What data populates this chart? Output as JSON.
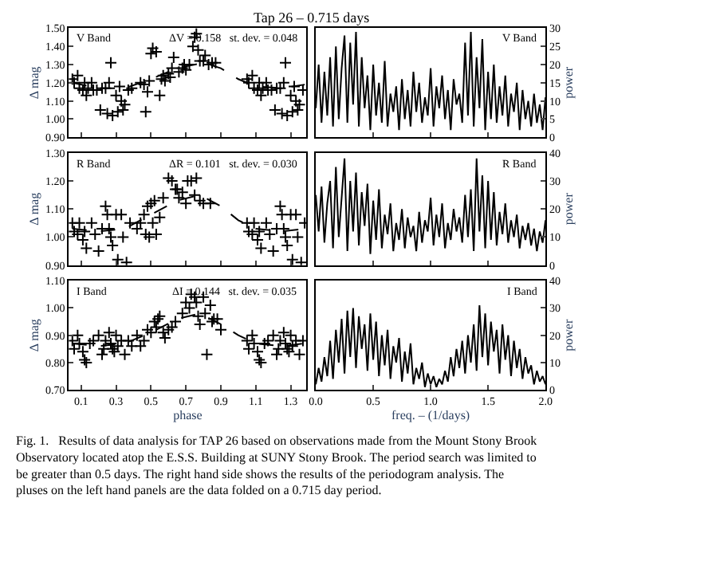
{
  "chart_data": [
    {
      "type": "scatter",
      "title": "Tap 26 – 0.715 days",
      "ylabel": "Δ mag",
      "annotations": [
        "V Band",
        "ΔV = 0.158   st. dev. = 0.048"
      ],
      "xlim": [
        0.03,
        1.39
      ],
      "xticks": [
        {
          "value": 0.1,
          "label": null
        },
        {
          "value": 0.3,
          "label": null
        },
        {
          "value": 0.5,
          "label": null
        },
        {
          "value": 0.7,
          "label": null
        },
        {
          "value": 0.9,
          "label": null
        },
        {
          "value": 1.1,
          "label": null
        },
        {
          "value": 1.3,
          "label": null
        }
      ],
      "ylim": [
        0.9,
        1.5
      ],
      "yticks": [
        {
          "value": 0.9,
          "label": "0.90"
        },
        {
          "value": 1.0,
          "label": "1.00"
        },
        {
          "value": 1.1,
          "label": "1.10"
        },
        {
          "value": 1.2,
          "label": "1.20"
        },
        {
          "value": 1.3,
          "label": "1.30"
        },
        {
          "value": 1.4,
          "label": "1.40"
        },
        {
          "value": 1.5,
          "label": "1.50"
        }
      ],
      "tick_labels": "y",
      "series": [
        {
          "type": "scatter",
          "marker": "cross",
          "color": "#000000",
          "x": [
            0.05,
            0.06,
            0.08,
            0.09,
            0.11,
            0.12,
            0.13,
            0.14,
            0.16,
            0.17,
            0.19,
            0.21,
            0.22,
            0.24,
            0.25,
            0.26,
            0.27,
            0.28,
            0.3,
            0.31,
            0.32,
            0.33,
            0.34,
            0.35,
            0.37,
            0.39,
            0.44,
            0.46,
            0.47,
            0.48,
            0.49,
            0.5,
            0.51,
            0.53,
            0.55,
            0.56,
            0.57,
            0.58,
            0.6,
            0.61,
            0.62,
            0.63,
            0.66,
            0.68,
            0.69,
            0.7,
            0.72,
            0.74,
            0.75,
            0.76,
            0.77,
            0.78,
            0.8,
            0.81,
            0.83,
            0.85,
            0.87,
            1.05,
            1.06,
            1.08,
            1.09,
            1.11,
            1.12,
            1.13,
            1.14,
            1.16,
            1.17,
            1.19,
            1.21,
            1.22,
            1.24,
            1.25,
            1.26,
            1.27,
            1.28,
            1.3,
            1.31,
            1.32,
            1.33,
            1.34,
            1.35,
            1.37
          ],
          "values": [
            1.22,
            1.2,
            1.24,
            1.17,
            1.16,
            1.2,
            1.13,
            1.17,
            1.2,
            1.16,
            1.16,
            1.05,
            1.17,
            1.17,
            1.03,
            1.2,
            1.31,
            1.02,
            1.13,
            1.04,
            1.18,
            1.1,
            1.05,
            1.08,
            1.16,
            1.17,
            1.2,
            1.19,
            1.04,
            1.15,
            1.21,
            1.36,
            1.39,
            1.37,
            1.13,
            1.22,
            1.24,
            1.21,
            1.25,
            1.23,
            1.28,
            1.34,
            1.26,
            1.28,
            1.3,
            1.27,
            1.3,
            1.4,
            1.45,
            1.47,
            1.38,
            1.32,
            1.32,
            1.35,
            1.3,
            1.31,
            1.31,
            1.22,
            1.2,
            1.24,
            1.17,
            1.16,
            1.2,
            1.13,
            1.17,
            1.2,
            1.16,
            1.16,
            1.05,
            1.17,
            1.17,
            1.03,
            1.2,
            1.31,
            1.02,
            1.13,
            1.04,
            1.18,
            1.1,
            1.05,
            1.08,
            1.16
          ]
        },
        {
          "type": "line",
          "marker": "none",
          "line_style": "dashed",
          "color": "#000000",
          "x": [
            0.05,
            0.2,
            0.35,
            0.5,
            0.65,
            0.8,
            0.9,
            1.0,
            1.1,
            1.25,
            1.38
          ],
          "values": [
            1.2,
            1.17,
            1.17,
            1.22,
            1.28,
            1.31,
            1.28,
            1.22,
            1.18,
            1.17,
            1.19
          ]
        }
      ]
    },
    {
      "type": "line",
      "ylabel": "power",
      "annotations": [
        "V Band"
      ],
      "xlim": [
        0,
        2
      ],
      "xticks": [
        {
          "value": 0,
          "label": null
        },
        {
          "value": 0.5,
          "label": null
        },
        {
          "value": 1,
          "label": null
        },
        {
          "value": 1.5,
          "label": null
        },
        {
          "value": 2,
          "label": null
        }
      ],
      "ylim": [
        0,
        30
      ],
      "yticks": [
        0,
        5,
        10,
        15,
        20,
        25,
        30
      ],
      "tick_labels": "y",
      "x": [
        0,
        0.025,
        0.05,
        0.075,
        0.1,
        0.125,
        0.15,
        0.175,
        0.2,
        0.225,
        0.25,
        0.275,
        0.3,
        0.325,
        0.35,
        0.375,
        0.4,
        0.425,
        0.45,
        0.475,
        0.5,
        0.525,
        0.55,
        0.575,
        0.6,
        0.625,
        0.65,
        0.675,
        0.7,
        0.725,
        0.75,
        0.775,
        0.8,
        0.825,
        0.85,
        0.875,
        0.9,
        0.925,
        0.95,
        0.975,
        1,
        1.025,
        1.05,
        1.075,
        1.1,
        1.125,
        1.15,
        1.175,
        1.2,
        1.225,
        1.25,
        1.275,
        1.3,
        1.325,
        1.35,
        1.375,
        1.4,
        1.425,
        1.45,
        1.475,
        1.5,
        1.525,
        1.55,
        1.575,
        1.6,
        1.625,
        1.65,
        1.675,
        1.7,
        1.725,
        1.75,
        1.775,
        1.8,
        1.825,
        1.85,
        1.875,
        1.9,
        1.925,
        1.95,
        1.975,
        2
      ],
      "series": [
        {
          "color": "#000000",
          "values": [
            8,
            20,
            4,
            18,
            6,
            22,
            3,
            25,
            5,
            19,
            28,
            4,
            26,
            9,
            29,
            3,
            22,
            8,
            17,
            2,
            20,
            6,
            15,
            4,
            21,
            3,
            12,
            7,
            14,
            2,
            16,
            5,
            13,
            3,
            18,
            7,
            15,
            4,
            11,
            6,
            19,
            3,
            14,
            8,
            17,
            5,
            13,
            2,
            16,
            9,
            12,
            4,
            26,
            6,
            29,
            3,
            22,
            8,
            27,
            2,
            18,
            5,
            20,
            4,
            14,
            6,
            17,
            3,
            12,
            7,
            15,
            2,
            13,
            5,
            10,
            3,
            12,
            4,
            9,
            2,
            11
          ]
        }
      ]
    },
    {
      "type": "scatter",
      "ylabel": "Δ mag",
      "annotations": [
        "R Band",
        "ΔR = 0.101   st. dev. = 0.030"
      ],
      "xlim": [
        0.03,
        1.39
      ],
      "xticks": [
        {
          "value": 0.1,
          "label": null
        },
        {
          "value": 0.3,
          "label": null
        },
        {
          "value": 0.5,
          "label": null
        },
        {
          "value": 0.7,
          "label": null
        },
        {
          "value": 0.9,
          "label": null
        },
        {
          "value": 1.1,
          "label": null
        },
        {
          "value": 1.3,
          "label": null
        }
      ],
      "ylim": [
        0.9,
        1.3
      ],
      "yticks": [
        {
          "value": 0.9,
          "label": "0.90"
        },
        {
          "value": 1.0,
          "label": "1.00"
        },
        {
          "value": 1.1,
          "label": "1.10"
        },
        {
          "value": 1.2,
          "label": "1.20"
        },
        {
          "value": 1.3,
          "label": "1.30"
        }
      ],
      "tick_labels": "y",
      "series": [
        {
          "type": "scatter",
          "marker": "cross",
          "color": "#000000",
          "x": [
            0.05,
            0.06,
            0.08,
            0.09,
            0.11,
            0.12,
            0.13,
            0.16,
            0.18,
            0.2,
            0.22,
            0.24,
            0.25,
            0.26,
            0.27,
            0.28,
            0.3,
            0.31,
            0.33,
            0.34,
            0.36,
            0.38,
            0.42,
            0.44,
            0.46,
            0.47,
            0.48,
            0.49,
            0.5,
            0.51,
            0.52,
            0.53,
            0.55,
            0.57,
            0.6,
            0.62,
            0.64,
            0.65,
            0.66,
            0.68,
            0.7,
            0.71,
            0.73,
            0.75,
            0.76,
            0.78,
            0.8,
            0.84,
            1.05,
            1.06,
            1.08,
            1.09,
            1.11,
            1.12,
            1.13,
            1.16,
            1.18,
            1.2,
            1.22,
            1.24,
            1.25,
            1.26,
            1.27,
            1.28,
            1.3,
            1.31,
            1.33,
            1.34,
            1.36,
            1.38
          ],
          "values": [
            1.05,
            1.02,
            1.01,
            1.05,
            0.99,
            1.02,
            0.96,
            1.05,
            1.01,
            0.95,
            1.03,
            1.11,
            1.08,
            1.03,
            1.0,
            0.97,
            1.08,
            0.92,
            1.08,
            1.0,
            0.91,
            1.05,
            1.03,
            1.05,
            1.08,
            1.01,
            1.11,
            1.0,
            1.12,
            1.05,
            1.13,
            1.01,
            1.07,
            1.14,
            1.21,
            1.2,
            1.17,
            1.17,
            1.14,
            1.16,
            1.12,
            1.2,
            1.2,
            1.15,
            1.21,
            1.13,
            1.12,
            1.12,
            1.05,
            1.02,
            1.01,
            1.05,
            0.99,
            1.02,
            0.96,
            1.05,
            1.01,
            0.95,
            1.03,
            1.11,
            1.08,
            1.03,
            1.0,
            0.97,
            1.08,
            0.92,
            1.08,
            1.0,
            0.91,
            1.05
          ]
        },
        {
          "type": "line",
          "marker": "none",
          "line_style": "dashed",
          "color": "#000000",
          "x": [
            0.05,
            0.2,
            0.35,
            0.5,
            0.65,
            0.78,
            0.9,
            1.0,
            1.1,
            1.25,
            1.38
          ],
          "values": [
            1.03,
            1.02,
            1.03,
            1.08,
            1.13,
            1.15,
            1.11,
            1.06,
            1.03,
            1.02,
            1.03
          ]
        }
      ]
    },
    {
      "type": "line",
      "ylabel": "power",
      "annotations": [
        "R Band"
      ],
      "xlim": [
        0,
        2
      ],
      "xticks": [
        {
          "value": 0,
          "label": null
        },
        {
          "value": 0.5,
          "label": null
        },
        {
          "value": 1,
          "label": null
        },
        {
          "value": 1.5,
          "label": null
        },
        {
          "value": 2,
          "label": null
        }
      ],
      "ylim": [
        0,
        40
      ],
      "yticks": [
        0,
        10,
        20,
        30,
        40
      ],
      "tick_labels": "y",
      "x": [
        0,
        0.025,
        0.05,
        0.075,
        0.1,
        0.125,
        0.15,
        0.175,
        0.2,
        0.225,
        0.25,
        0.275,
        0.3,
        0.325,
        0.35,
        0.375,
        0.4,
        0.425,
        0.45,
        0.475,
        0.5,
        0.525,
        0.55,
        0.575,
        0.6,
        0.625,
        0.65,
        0.675,
        0.7,
        0.725,
        0.75,
        0.775,
        0.8,
        0.825,
        0.85,
        0.875,
        0.9,
        0.925,
        0.95,
        0.975,
        1,
        1.025,
        1.05,
        1.075,
        1.1,
        1.125,
        1.15,
        1.175,
        1.2,
        1.225,
        1.25,
        1.275,
        1.3,
        1.325,
        1.35,
        1.375,
        1.4,
        1.425,
        1.45,
        1.475,
        1.5,
        1.525,
        1.55,
        1.575,
        1.6,
        1.625,
        1.65,
        1.675,
        1.7,
        1.725,
        1.75,
        1.775,
        1.8,
        1.825,
        1.85,
        1.875,
        1.9,
        1.925,
        1.95,
        1.975,
        2
      ],
      "series": [
        {
          "color": "#000000",
          "values": [
            25,
            12,
            28,
            8,
            22,
            30,
            6,
            35,
            10,
            24,
            38,
            5,
            30,
            12,
            33,
            7,
            26,
            14,
            29,
            4,
            23,
            9,
            27,
            6,
            18,
            11,
            22,
            5,
            15,
            9,
            20,
            6,
            17,
            10,
            14,
            5,
            19,
            8,
            16,
            12,
            24,
            7,
            18,
            10,
            22,
            6,
            15,
            9,
            20,
            12,
            17,
            8,
            25,
            10,
            27,
            5,
            38,
            12,
            32,
            6,
            30,
            9,
            26,
            7,
            19,
            11,
            22,
            8,
            16,
            10,
            18,
            6,
            14,
            9,
            15,
            7,
            13,
            5,
            12,
            8,
            16
          ]
        }
      ]
    },
    {
      "type": "scatter",
      "xlabel": "phase",
      "ylabel": "Δ mag",
      "annotations": [
        "I Band",
        "ΔI = 0.144   st. dev. = 0.035"
      ],
      "xlim": [
        0.03,
        1.39
      ],
      "xticks": [
        0.1,
        0.3,
        0.5,
        0.7,
        0.9,
        1.1,
        1.3
      ],
      "ylim": [
        0.7,
        1.1
      ],
      "yticks": [
        {
          "value": 0.7,
          "label": "0.70"
        },
        {
          "value": 0.8,
          "label": "0.80"
        },
        {
          "value": 0.9,
          "label": "0.90"
        },
        {
          "value": 1.0,
          "label": "1.00"
        },
        {
          "value": 1.1,
          "label": "1.10"
        }
      ],
      "series": [
        {
          "type": "scatter",
          "marker": "cross",
          "color": "#000000",
          "x": [
            0.05,
            0.06,
            0.08,
            0.09,
            0.11,
            0.12,
            0.13,
            0.15,
            0.17,
            0.2,
            0.22,
            0.23,
            0.24,
            0.26,
            0.27,
            0.28,
            0.29,
            0.3,
            0.31,
            0.33,
            0.35,
            0.37,
            0.39,
            0.42,
            0.44,
            0.46,
            0.48,
            0.5,
            0.52,
            0.53,
            0.54,
            0.55,
            0.57,
            0.58,
            0.6,
            0.62,
            0.64,
            0.68,
            0.7,
            0.72,
            0.73,
            0.75,
            0.76,
            0.77,
            0.78,
            0.8,
            0.81,
            0.82,
            0.84,
            0.85,
            0.86,
            0.88,
            0.9,
            1.05,
            1.06,
            1.08,
            1.09,
            1.11,
            1.12,
            1.13,
            1.15,
            1.17,
            1.2,
            1.22,
            1.23,
            1.24,
            1.26,
            1.27,
            1.28,
            1.29,
            1.3,
            1.31,
            1.33,
            1.35,
            1.37
          ],
          "values": [
            0.88,
            0.85,
            0.9,
            0.87,
            0.84,
            0.81,
            0.8,
            0.87,
            0.88,
            0.9,
            0.83,
            0.85,
            0.88,
            0.91,
            0.87,
            0.85,
            0.84,
            0.9,
            0.86,
            0.88,
            0.83,
            0.88,
            0.86,
            0.9,
            0.86,
            0.88,
            0.92,
            0.91,
            0.95,
            0.93,
            0.96,
            0.97,
            0.91,
            0.89,
            0.92,
            0.93,
            0.95,
            0.98,
            1.02,
            1.0,
            1.05,
            1.04,
            1.02,
            0.97,
            0.94,
            1.04,
            0.98,
            0.83,
            1.01,
            0.95,
            0.96,
            0.96,
            0.92,
            0.88,
            0.85,
            0.9,
            0.87,
            0.84,
            0.81,
            0.8,
            0.87,
            0.88,
            0.9,
            0.83,
            0.85,
            0.88,
            0.91,
            0.87,
            0.85,
            0.84,
            0.9,
            0.86,
            0.88,
            0.83,
            0.88
          ]
        },
        {
          "type": "line",
          "marker": "none",
          "line_style": "dashed",
          "color": "#000000",
          "x": [
            0.05,
            0.2,
            0.35,
            0.5,
            0.65,
            0.78,
            0.9,
            1.0,
            1.1,
            1.25,
            1.38
          ],
          "values": [
            0.87,
            0.86,
            0.87,
            0.91,
            0.96,
            0.98,
            0.94,
            0.9,
            0.87,
            0.86,
            0.87
          ]
        }
      ]
    },
    {
      "type": "line",
      "xlabel": "freq. – (1/days)",
      "ylabel": "power",
      "annotations": [
        "I Band"
      ],
      "xlim": [
        0,
        2
      ],
      "xticks": [
        {
          "value": 0,
          "label": "0.0"
        },
        {
          "value": 0.5,
          "label": "0.5"
        },
        {
          "value": 1,
          "label": "1.0"
        },
        {
          "value": 1.5,
          "label": "1.5"
        },
        {
          "value": 2,
          "label": "2.0"
        }
      ],
      "ylim": [
        0,
        40
      ],
      "yticks": [
        0,
        10,
        20,
        30,
        40
      ],
      "x": [
        0,
        0.025,
        0.05,
        0.075,
        0.1,
        0.125,
        0.15,
        0.175,
        0.2,
        0.225,
        0.25,
        0.275,
        0.3,
        0.325,
        0.35,
        0.375,
        0.4,
        0.425,
        0.45,
        0.475,
        0.5,
        0.525,
        0.55,
        0.575,
        0.6,
        0.625,
        0.65,
        0.675,
        0.7,
        0.725,
        0.75,
        0.775,
        0.8,
        0.825,
        0.85,
        0.875,
        0.9,
        0.925,
        0.95,
        0.975,
        1,
        1.025,
        1.05,
        1.075,
        1.1,
        1.125,
        1.15,
        1.175,
        1.2,
        1.225,
        1.25,
        1.275,
        1.3,
        1.325,
        1.35,
        1.375,
        1.4,
        1.425,
        1.45,
        1.475,
        1.5,
        1.525,
        1.55,
        1.575,
        1.6,
        1.625,
        1.65,
        1.675,
        1.7,
        1.725,
        1.75,
        1.775,
        1.8,
        1.825,
        1.85,
        1.875,
        1.9,
        1.925,
        1.95,
        1.975,
        2
      ],
      "series": [
        {
          "color": "#000000",
          "values": [
            2,
            8,
            3,
            12,
            5,
            18,
            4,
            22,
            10,
            26,
            6,
            29,
            12,
            30,
            8,
            27,
            15,
            24,
            7,
            28,
            11,
            25,
            5,
            20,
            9,
            22,
            4,
            16,
            10,
            19,
            3,
            14,
            6,
            17,
            2,
            8,
            4,
            10,
            1,
            6,
            2,
            5,
            1,
            4,
            2,
            7,
            3,
            12,
            5,
            15,
            8,
            18,
            6,
            20,
            10,
            24,
            7,
            31,
            12,
            28,
            9,
            25,
            14,
            22,
            6,
            24,
            11,
            20,
            5,
            18,
            8,
            15,
            4,
            12,
            6,
            9,
            2,
            7,
            3,
            5,
            2
          ]
        }
      ]
    },
    {
      "type": "other",
      "annotations": [
        "Fig. 1.   Results of data analysis for TAP 26 based on observations made from the Mount Stony Brook Observatory located atop the E.S.S. Building at SUNY Stony Brook. The period search was limited to be greater than 0.5 days. The right hand side shows the results of the periodogram analysis. The pluses on the left hand panels are the data folded on a 0.715 day period."
      ]
    }
  ]
}
